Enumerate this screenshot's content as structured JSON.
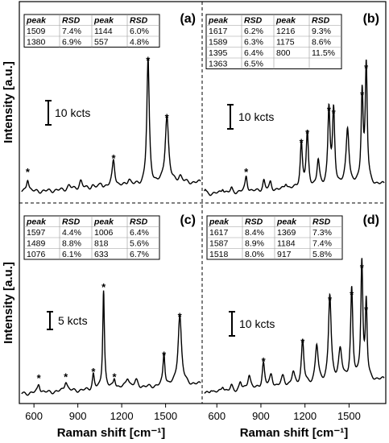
{
  "figure": {
    "xlabel": "Raman shift [cm⁻¹]",
    "ylabel": "Intensity [a.u.]",
    "x_ticks": [
      "600",
      "900",
      "1200",
      "1500"
    ],
    "panel_labels": [
      "(a)",
      "(b)",
      "(c)",
      "(d)"
    ],
    "table_headers": [
      "peak",
      "RSD",
      "peak",
      "RSD"
    ]
  },
  "chart_data": [
    {
      "type": "line",
      "panel": "(a)",
      "xlim": [
        500,
        1750
      ],
      "scale_bar_label": "10 kcts",
      "table": [
        [
          "1509",
          "7.4%",
          "1144",
          "6.0%"
        ],
        [
          "1380",
          "6.9%",
          "557",
          "4.8%"
        ]
      ],
      "peaks": [
        {
          "x": 557,
          "y": 10,
          "starred": true,
          "w": 10
        },
        {
          "x": 840,
          "y": 3,
          "starred": false,
          "w": 14
        },
        {
          "x": 920,
          "y": 6,
          "starred": false,
          "w": 12
        },
        {
          "x": 1000,
          "y": 2,
          "starred": false,
          "w": 12
        },
        {
          "x": 1060,
          "y": 3,
          "starred": false,
          "w": 12
        },
        {
          "x": 1144,
          "y": 20,
          "starred": true,
          "w": 11
        },
        {
          "x": 1250,
          "y": 5,
          "starred": false,
          "w": 14
        },
        {
          "x": 1380,
          "y": 92,
          "starred": true,
          "w": 10
        },
        {
          "x": 1509,
          "y": 50,
          "starred": true,
          "w": 14
        },
        {
          "x": 1600,
          "y": 5,
          "starred": false,
          "w": 16
        }
      ]
    },
    {
      "type": "line",
      "panel": "(b)",
      "xlim": [
        500,
        1750
      ],
      "scale_bar_label": "10 kcts",
      "table": [
        [
          "1617",
          "6.2%",
          "1216",
          "9.3%"
        ],
        [
          "1589",
          "6.3%",
          "1175",
          "8.6%"
        ],
        [
          "1395",
          "6.4%",
          "800",
          "11.5%"
        ],
        [
          "1363",
          "6.5%",
          "",
          ""
        ]
      ],
      "peaks": [
        {
          "x": 520,
          "y": 3,
          "starred": false,
          "w": 8
        },
        {
          "x": 640,
          "y": 4,
          "starred": false,
          "w": 8
        },
        {
          "x": 700,
          "y": 3,
          "starred": false,
          "w": 8
        },
        {
          "x": 800,
          "y": 12,
          "starred": true,
          "w": 9
        },
        {
          "x": 920,
          "y": 8,
          "starred": false,
          "w": 9
        },
        {
          "x": 965,
          "y": 6,
          "starred": false,
          "w": 9
        },
        {
          "x": 1070,
          "y": 5,
          "starred": false,
          "w": 10
        },
        {
          "x": 1175,
          "y": 35,
          "starred": true,
          "w": 9
        },
        {
          "x": 1216,
          "y": 42,
          "starred": true,
          "w": 9
        },
        {
          "x": 1290,
          "y": 20,
          "starred": false,
          "w": 10
        },
        {
          "x": 1363,
          "y": 60,
          "starred": true,
          "w": 9
        },
        {
          "x": 1395,
          "y": 58,
          "starred": true,
          "w": 9
        },
        {
          "x": 1490,
          "y": 45,
          "starred": false,
          "w": 12
        },
        {
          "x": 1589,
          "y": 72,
          "starred": true,
          "w": 8
        },
        {
          "x": 1617,
          "y": 93,
          "starred": true,
          "w": 8
        }
      ]
    },
    {
      "type": "line",
      "panel": "(c)",
      "xlim": [
        500,
        1750
      ],
      "scale_bar_label": "5 kcts",
      "table": [
        [
          "1597",
          "4.4%",
          "1006",
          "6.4%"
        ],
        [
          "1489",
          "8.8%",
          "818",
          "5.6%"
        ],
        [
          "1076",
          "6.1%",
          "633",
          "6.7%"
        ]
      ],
      "peaks": [
        {
          "x": 633,
          "y": 7,
          "starred": true,
          "w": 10
        },
        {
          "x": 818,
          "y": 8,
          "starred": true,
          "w": 12
        },
        {
          "x": 1006,
          "y": 12,
          "starred": true,
          "w": 8
        },
        {
          "x": 1076,
          "y": 78,
          "starred": true,
          "w": 7
        },
        {
          "x": 1150,
          "y": 8,
          "starred": true,
          "w": 9
        },
        {
          "x": 1240,
          "y": 8,
          "starred": false,
          "w": 14
        },
        {
          "x": 1300,
          "y": 5,
          "starred": false,
          "w": 14
        },
        {
          "x": 1489,
          "y": 25,
          "starred": true,
          "w": 8
        },
        {
          "x": 1597,
          "y": 55,
          "starred": true,
          "w": 14
        }
      ]
    },
    {
      "type": "line",
      "panel": "(d)",
      "xlim": [
        500,
        1750
      ],
      "scale_bar_label": "10 kcts",
      "table": [
        [
          "1617",
          "8.4%",
          "1369",
          "7.3%"
        ],
        [
          "1587",
          "8.9%",
          "1184",
          "7.4%"
        ],
        [
          "1518",
          "8.0%",
          "917",
          "5.8%"
        ]
      ],
      "peaks": [
        {
          "x": 560,
          "y": 3,
          "starred": false,
          "w": 10
        },
        {
          "x": 640,
          "y": 5,
          "starred": false,
          "w": 10
        },
        {
          "x": 700,
          "y": 4,
          "starred": false,
          "w": 10
        },
        {
          "x": 760,
          "y": 6,
          "starred": false,
          "w": 10
        },
        {
          "x": 820,
          "y": 12,
          "starred": false,
          "w": 12
        },
        {
          "x": 917,
          "y": 20,
          "starred": true,
          "w": 10
        },
        {
          "x": 970,
          "y": 10,
          "starred": false,
          "w": 12
        },
        {
          "x": 1050,
          "y": 8,
          "starred": false,
          "w": 14
        },
        {
          "x": 1120,
          "y": 10,
          "starred": false,
          "w": 12
        },
        {
          "x": 1184,
          "y": 35,
          "starred": true,
          "w": 10
        },
        {
          "x": 1280,
          "y": 30,
          "starred": false,
          "w": 12
        },
        {
          "x": 1369,
          "y": 68,
          "starred": true,
          "w": 11
        },
        {
          "x": 1440,
          "y": 25,
          "starred": false,
          "w": 14
        },
        {
          "x": 1518,
          "y": 72,
          "starred": true,
          "w": 9
        },
        {
          "x": 1587,
          "y": 93,
          "starred": true,
          "w": 8
        },
        {
          "x": 1617,
          "y": 60,
          "starred": true,
          "w": 7
        }
      ]
    }
  ]
}
